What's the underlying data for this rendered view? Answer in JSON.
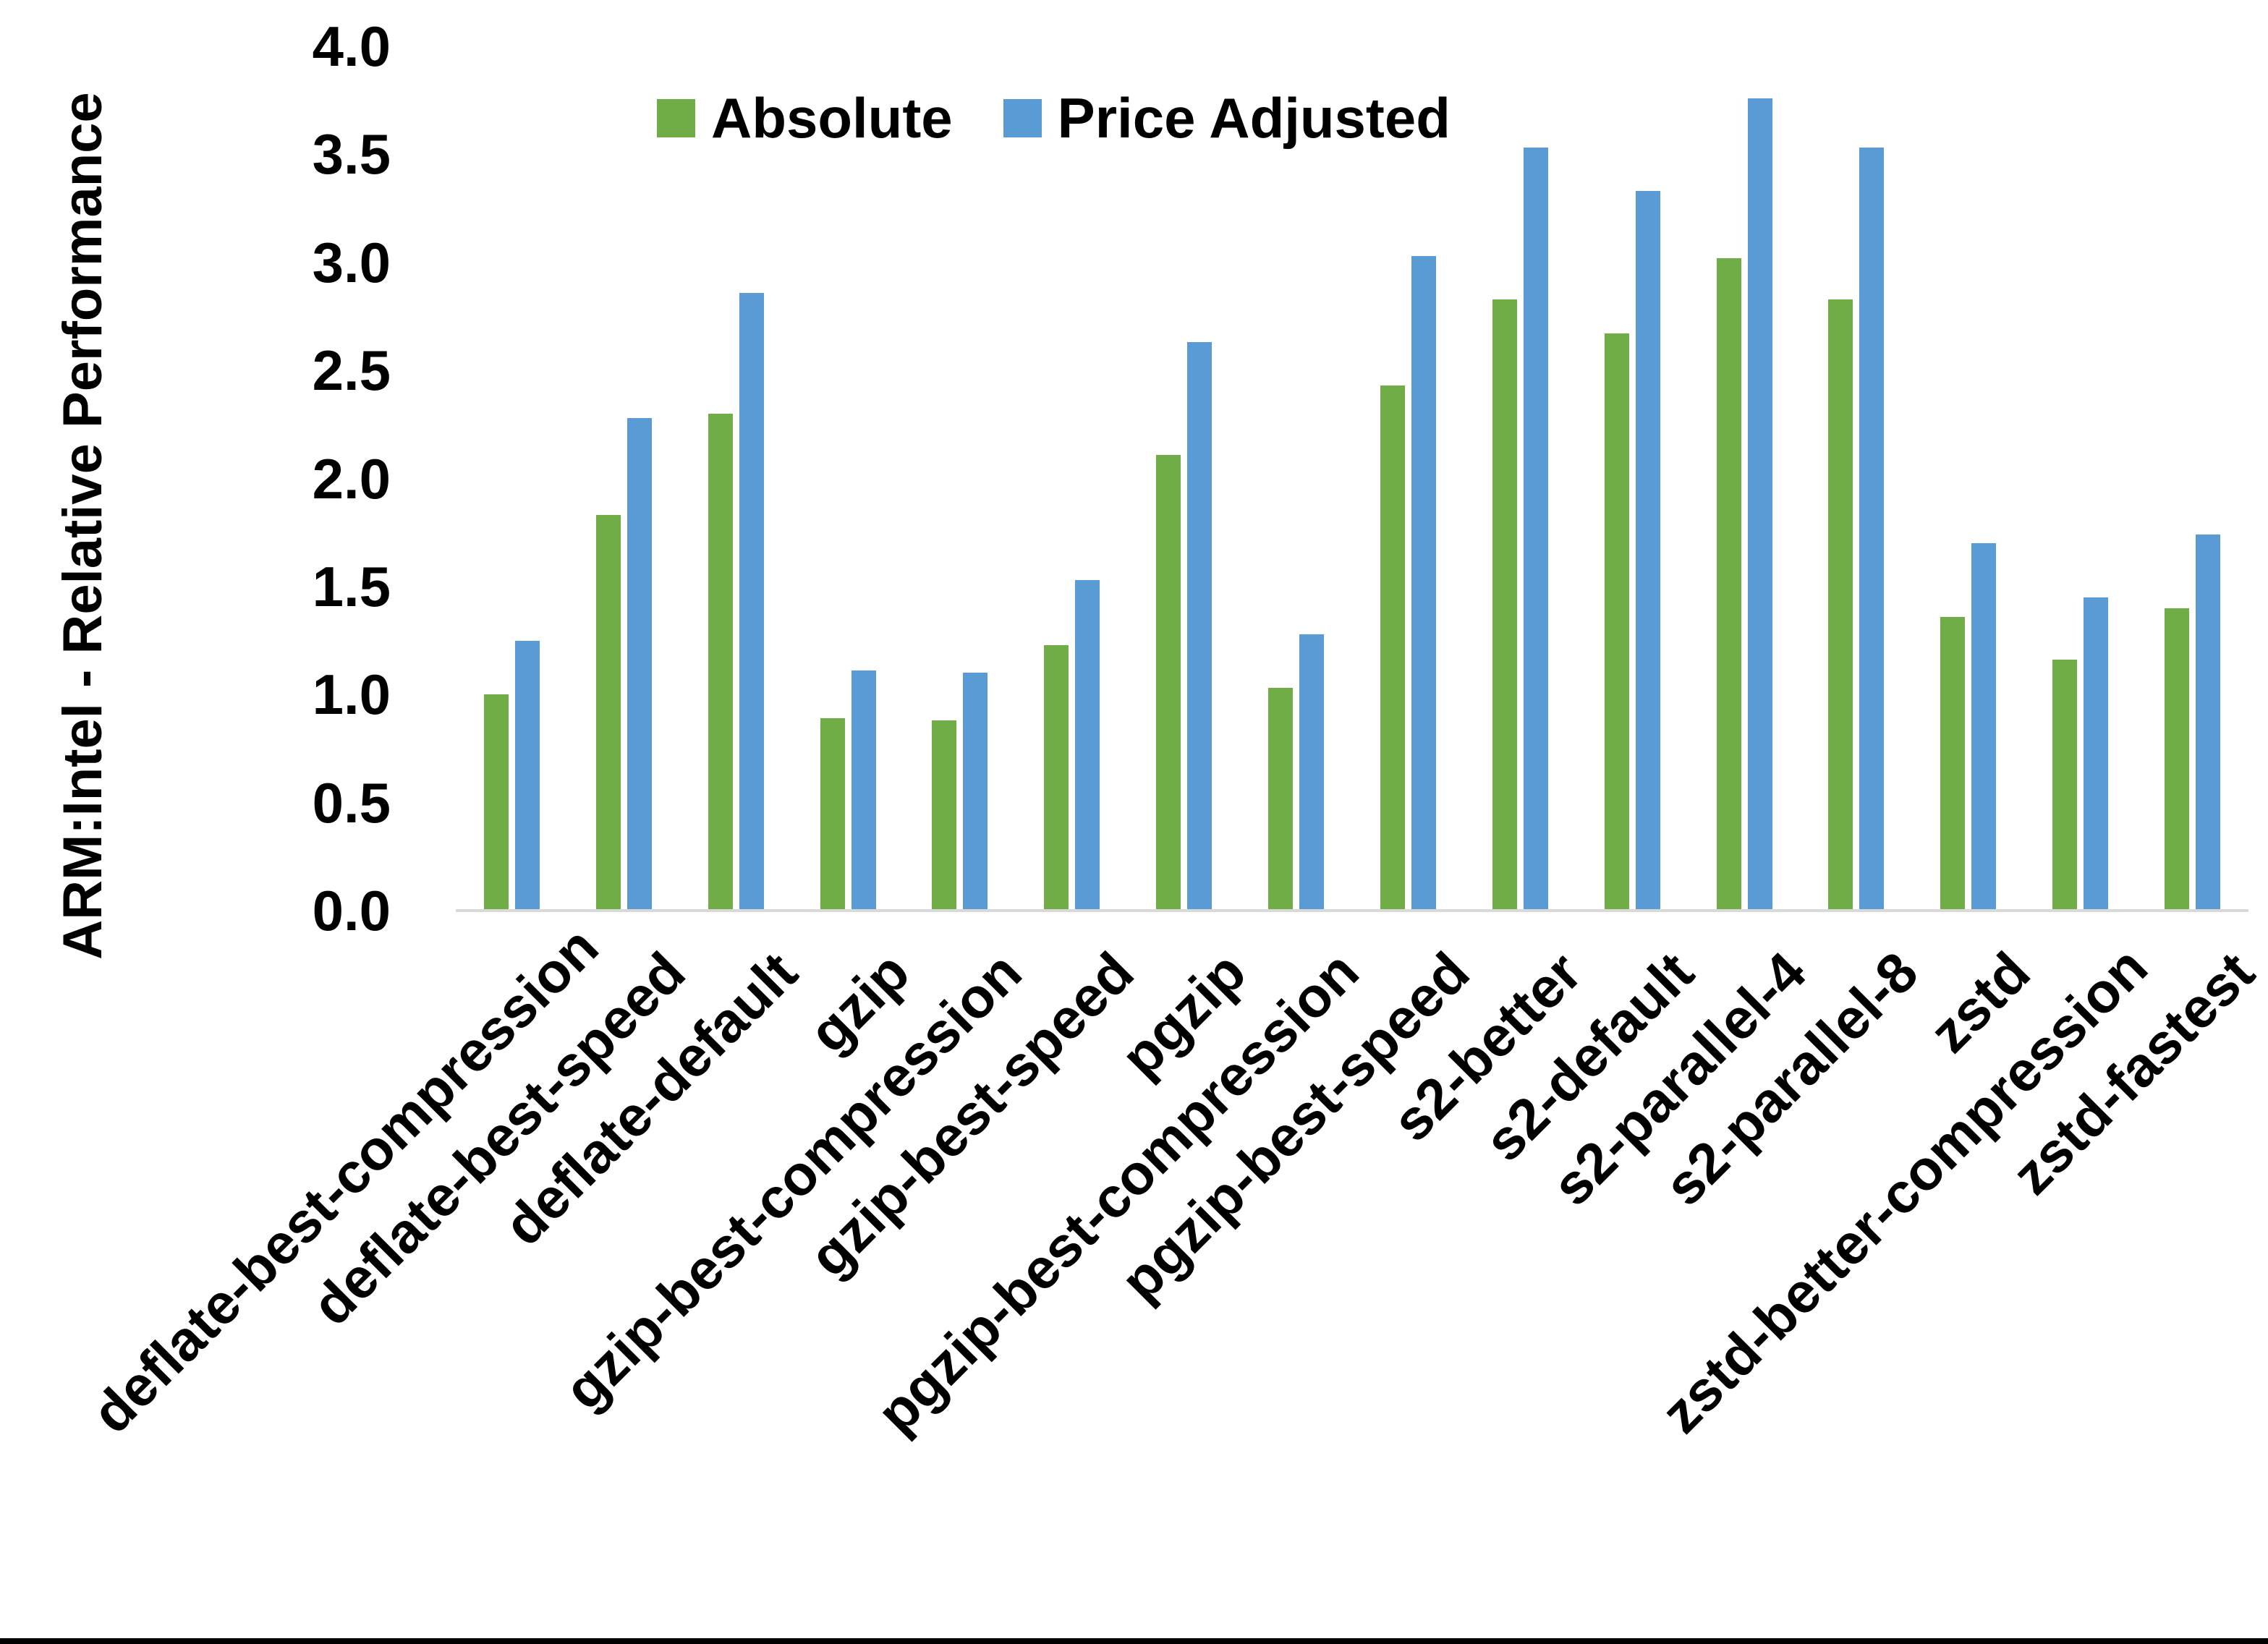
{
  "page": {
    "background": "#ffffff",
    "bottom_border_color": "#000000"
  },
  "chart_data": {
    "type": "bar",
    "title": "",
    "ylabel": "ARM:Intel - Relative Performance",
    "xlabel": "",
    "ylim": [
      0.0,
      4.0
    ],
    "ytick_step": 0.5,
    "yticks": [
      "0.0",
      "0.5",
      "1.0",
      "1.5",
      "2.0",
      "2.5",
      "3.0",
      "3.5",
      "4.0"
    ],
    "grid": false,
    "legend_position": "top-center",
    "axis_line_color": "#d9d9d9",
    "text_color": "#000000",
    "categories": [
      "deflate-best-compression",
      "deflate-best-speed",
      "deflate-default",
      "gzip",
      "gzip-best-compression",
      "gzip-best-speed",
      "pgzip",
      "pgzip-best-compression",
      "pgzip-best-speed",
      "s2-better",
      "s2-default",
      "s2-parallel-4",
      "s2-parallel-8",
      "zstd",
      "zstd-better-compression",
      "zstd-fastest"
    ],
    "series": [
      {
        "name": "Absolute",
        "color": "#70AD47",
        "values": [
          1.0,
          1.83,
          2.3,
          0.89,
          0.88,
          1.23,
          2.11,
          1.03,
          2.43,
          2.83,
          2.67,
          3.02,
          2.83,
          1.36,
          1.16,
          1.4
        ]
      },
      {
        "name": "Price Adjusted",
        "color": "#5B9BD5",
        "values": [
          1.25,
          2.28,
          2.86,
          1.11,
          1.1,
          1.53,
          2.63,
          1.28,
          3.03,
          3.53,
          3.33,
          3.76,
          3.53,
          1.7,
          1.45,
          1.74
        ]
      }
    ]
  }
}
